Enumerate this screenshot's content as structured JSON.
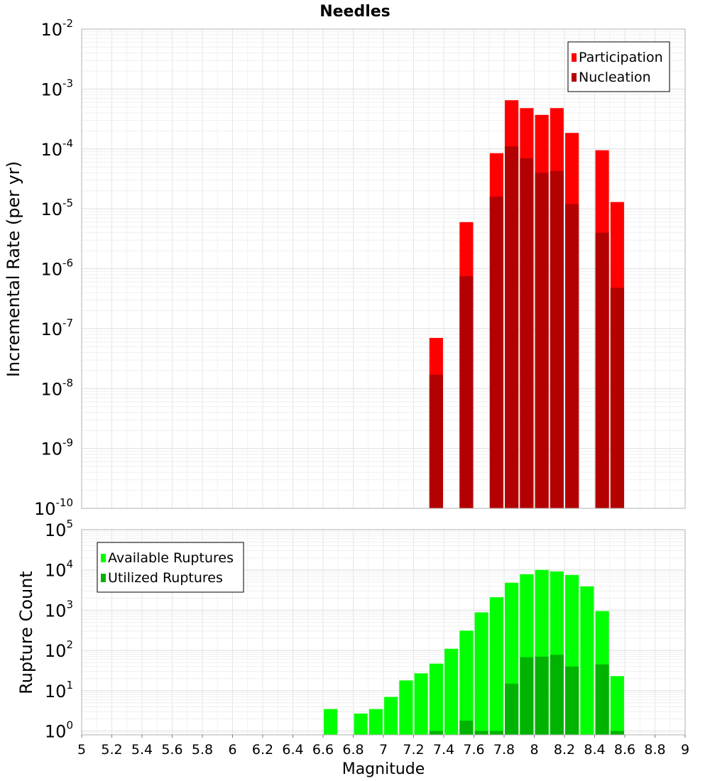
{
  "chart_data": [
    {
      "type": "bar",
      "title": "Needles",
      "ylabel": "Incremental Rate (per yr)",
      "xlabel": "",
      "y_scale": "log",
      "ylim": [
        1e-10,
        0.01
      ],
      "xlim": [
        5,
        9
      ],
      "grid": true,
      "legend_placement": "top-right",
      "y_ticks": [
        {
          "base": "10",
          "exp": "-10"
        },
        {
          "base": "10",
          "exp": "-9"
        },
        {
          "base": "10",
          "exp": "-8"
        },
        {
          "base": "10",
          "exp": "-7"
        },
        {
          "base": "10",
          "exp": "-6"
        },
        {
          "base": "10",
          "exp": "-5"
        },
        {
          "base": "10",
          "exp": "-4"
        },
        {
          "base": "10",
          "exp": "-3"
        },
        {
          "base": "10",
          "exp": "-2"
        }
      ],
      "bar_width": 0.09,
      "overlaid": true,
      "series": [
        {
          "name": "Participation",
          "color": "#ff0000",
          "x": [
            7.35,
            7.55,
            7.75,
            7.85,
            7.95,
            8.05,
            8.15,
            8.25,
            8.45,
            8.55
          ],
          "values": [
            7e-08,
            6e-06,
            8.5e-05,
            0.00065,
            0.00048,
            0.00037,
            0.00048,
            0.000185,
            9.5e-05,
            1.3e-05
          ]
        },
        {
          "name": "Nucleation",
          "color": "#b30000",
          "x": [
            7.35,
            7.55,
            7.75,
            7.85,
            7.95,
            8.05,
            8.15,
            8.25,
            8.45,
            8.55
          ],
          "values": [
            1.7e-08,
            7.5e-07,
            1.6e-05,
            0.00011,
            7e-05,
            4e-05,
            4.3e-05,
            1.2e-05,
            4e-06,
            4.8e-07
          ]
        }
      ]
    },
    {
      "type": "bar",
      "title": "",
      "ylabel": "Rupture Count",
      "xlabel": "Magnitude",
      "y_scale": "log",
      "ylim": [
        0.8,
        100000.0
      ],
      "xlim": [
        5,
        9
      ],
      "grid": true,
      "legend_placement": "top-left",
      "x_ticks": [
        "5",
        "5.2",
        "5.4",
        "5.6",
        "5.8",
        "6",
        "6.2",
        "6.4",
        "6.6",
        "6.8",
        "7",
        "7.2",
        "7.4",
        "7.6",
        "7.8",
        "8",
        "8.2",
        "8.4",
        "8.6",
        "8.8",
        "9"
      ],
      "y_ticks": [
        {
          "base": "10",
          "exp": "0"
        },
        {
          "base": "10",
          "exp": "1"
        },
        {
          "base": "10",
          "exp": "2"
        },
        {
          "base": "10",
          "exp": "3"
        },
        {
          "base": "10",
          "exp": "4"
        },
        {
          "base": "10",
          "exp": "5"
        }
      ],
      "bar_width": 0.09,
      "overlaid": true,
      "series": [
        {
          "name": "Available Ruptures",
          "color": "#00ff00",
          "x": [
            6.65,
            6.85,
            6.95,
            7.05,
            7.15,
            7.25,
            7.35,
            7.45,
            7.55,
            7.65,
            7.75,
            7.85,
            7.95,
            8.05,
            8.15,
            8.25,
            8.35,
            8.45,
            8.55
          ],
          "values": [
            3.5,
            2.7,
            3.5,
            7,
            18,
            27,
            47,
            110,
            310,
            880,
            2100,
            4800,
            7800,
            10000,
            9200,
            7500,
            3900,
            950,
            23
          ]
        },
        {
          "name": "Utilized Ruptures",
          "color": "#00b300",
          "x": [
            7.35,
            7.55,
            7.65,
            7.75,
            7.85,
            7.95,
            8.05,
            8.15,
            8.25,
            8.45,
            8.55
          ],
          "values": [
            1,
            1.8,
            1,
            1,
            15,
            68,
            70,
            78,
            40,
            45,
            1
          ]
        }
      ]
    }
  ]
}
